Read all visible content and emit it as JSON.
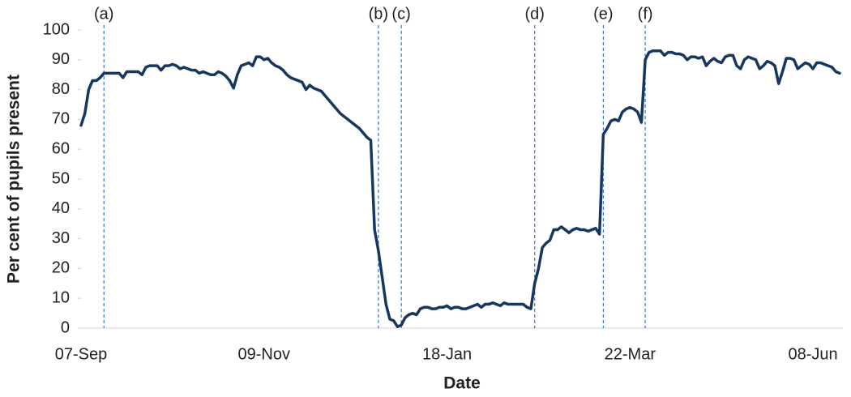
{
  "chart_data": {
    "type": "line",
    "x_label": "Date",
    "y_label": "Per cent of pupils present",
    "categories": [
      "07-Sep",
      null,
      null,
      null,
      null,
      null,
      null,
      null,
      null,
      null,
      null,
      null,
      null,
      null,
      null,
      null,
      null,
      null,
      null,
      null,
      null,
      null,
      null,
      null,
      null,
      null,
      null,
      null,
      null,
      null,
      null,
      null,
      null,
      null,
      null,
      null,
      null,
      null,
      null,
      null,
      null,
      null,
      null,
      null,
      null,
      null,
      null,
      null,
      "09-Nov",
      null,
      null,
      null,
      null,
      null,
      null,
      null,
      null,
      null,
      null,
      null,
      null,
      null,
      null,
      null,
      null,
      null,
      null,
      null,
      null,
      null,
      null,
      null,
      null,
      null,
      null,
      null,
      null,
      null,
      null,
      null,
      null,
      null,
      null,
      null,
      null,
      null,
      null,
      null,
      null,
      null,
      null,
      null,
      null,
      null,
      null,
      null,
      "18-Jan",
      null,
      null,
      null,
      null,
      null,
      null,
      null,
      null,
      null,
      null,
      null,
      null,
      null,
      null,
      null,
      null,
      null,
      null,
      null,
      null,
      null,
      null,
      null,
      null,
      null,
      null,
      null,
      null,
      null,
      null,
      null,
      null,
      null,
      null,
      null,
      null,
      null,
      null,
      null,
      null,
      null,
      null,
      null,
      null,
      null,
      null,
      null,
      "22-Mar",
      null,
      null,
      null,
      null,
      null,
      null,
      null,
      null,
      null,
      null,
      null,
      null,
      null,
      null,
      null,
      null,
      null,
      null,
      null,
      null,
      null,
      null,
      null,
      null,
      null,
      null,
      null,
      null,
      null,
      null,
      null,
      null,
      null,
      null,
      null,
      null,
      null,
      null,
      null,
      null,
      null,
      null,
      null,
      null,
      null,
      null,
      null,
      "08-Jun",
      null,
      null,
      null,
      null,
      null,
      null,
      null
    ],
    "series": [
      {
        "color": "#17375e",
        "values": [
          68,
          72,
          80,
          83,
          83,
          84,
          85.5,
          85.5,
          85.5,
          85.5,
          85.5,
          84,
          86,
          86,
          86,
          86,
          85,
          87.5,
          88,
          88,
          88,
          86.5,
          88,
          88,
          88.5,
          88,
          87,
          87.5,
          87,
          86.5,
          86.5,
          85.5,
          86,
          85.5,
          85,
          85,
          86,
          85.5,
          84.5,
          83,
          80.5,
          85,
          88,
          88.5,
          89,
          88,
          91,
          91,
          90,
          90.5,
          89,
          88,
          87.5,
          86.5,
          85,
          84,
          83.5,
          83,
          82.5,
          80,
          81.5,
          80.5,
          80,
          79.5,
          78,
          76.5,
          75,
          73.5,
          72,
          71,
          70,
          69,
          68,
          67,
          65.5,
          64,
          63,
          33,
          26,
          17,
          8,
          3,
          2.5,
          0.5,
          1,
          3.5,
          4.5,
          5,
          4.5,
          6.5,
          7,
          7,
          6.5,
          6.5,
          7,
          7,
          7.5,
          6.5,
          7,
          7,
          6.5,
          6.5,
          7,
          7.5,
          8,
          7,
          8,
          8,
          8.5,
          8,
          7.5,
          8.5,
          8,
          8,
          8,
          8,
          8,
          7,
          6.5,
          15,
          20,
          27,
          28.5,
          29.5,
          33,
          33,
          34,
          33,
          32,
          33,
          33.5,
          33,
          33,
          32.5,
          33,
          33.5,
          31.5,
          65,
          67,
          69.5,
          70,
          69.5,
          72.5,
          73.5,
          74,
          73.5,
          72.5,
          69,
          90,
          92.5,
          93,
          93,
          93,
          91.5,
          92.5,
          92.5,
          92,
          92,
          91.5,
          90,
          91,
          91,
          90.5,
          91,
          88,
          89.5,
          90.5,
          89.5,
          89,
          91,
          91.5,
          91.5,
          88,
          87,
          90,
          91,
          90.5,
          90,
          87,
          88,
          89.5,
          89,
          88,
          82,
          86,
          90.5,
          90.5,
          90,
          87,
          88,
          89,
          88.5,
          87,
          89,
          89,
          88.5,
          88,
          87.5,
          86,
          85.5
        ]
      }
    ],
    "annotations": [
      {
        "label": "(a)",
        "at": 6,
        "color": "#2e75d6"
      },
      {
        "label": "(b)",
        "at": 78,
        "color": "#2e75d6"
      },
      {
        "label": "(c)",
        "at": 84,
        "color": "#2e75d6"
      },
      {
        "label": "(d)",
        "at": 119,
        "color": "#2e75d6"
      },
      {
        "label": "(e)",
        "at": 137,
        "color": "#2e75d6"
      },
      {
        "label": "(f)",
        "at": 148,
        "color": "#2e75d6"
      }
    ],
    "ylim": [
      0,
      100
    ],
    "yticks": [
      0,
      10,
      20,
      30,
      40,
      50,
      60,
      70,
      80,
      90,
      100
    ],
    "grid": false
  }
}
